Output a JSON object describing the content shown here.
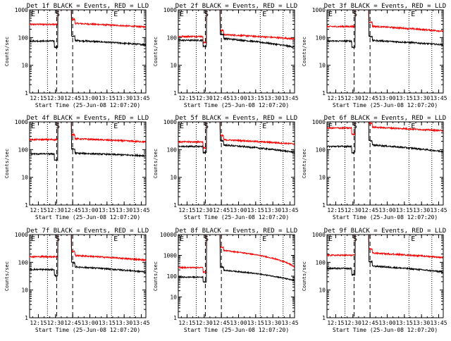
{
  "colors": {
    "events": "#000000",
    "lld": "#ff0000",
    "frame": "#000000"
  },
  "chart_data": [
    {
      "type": "line",
      "title": "Det 1f BLACK = Events, RED = LLD",
      "xlabel": "Start Time (25-Jun-08 12:07:20)",
      "ylabel": "Counts/sec",
      "ylog": true,
      "ylim": [
        1,
        1000
      ],
      "yticks": [
        "1",
        "10",
        "100",
        "1000"
      ],
      "xticks": [
        "12:15",
        "12:30",
        "12:45",
        "13:00",
        "13:15",
        "13:30",
        "13:45"
      ],
      "xmarkers": [
        "S",
        "E"
      ],
      "red": {
        "pre": 300,
        "post": 330,
        "post_end": 240
      },
      "black": {
        "pre": 75,
        "post": 80,
        "post_end": 55
      },
      "dash": "black_only"
    },
    {
      "type": "line",
      "title": "Det 2f BLACK = Events, RED = LLD",
      "xlabel": "Start Time (25-Jun-08 12:07:20)",
      "ylabel": "Counts/sec",
      "ylog": true,
      "ylim": [
        1,
        1000
      ],
      "yticks": [
        "1",
        "10",
        "100",
        "1000"
      ],
      "xticks": [
        "12:15",
        "12:30",
        "12:45",
        "13:00",
        "13:15",
        "13:30",
        "13:45"
      ],
      "xmarkers": [
        "S",
        "E"
      ],
      "red": {
        "pre": 110,
        "post": 130,
        "post_end": 90
      },
      "black": {
        "pre": 80,
        "post": 95,
        "post_end": 45
      },
      "dash": "both"
    },
    {
      "type": "line",
      "title": "Det 3f BLACK = Events, RED = LLD",
      "xlabel": "Start Time (25-Jun-08 12:07:20)",
      "ylabel": "Counts/sec",
      "ylog": true,
      "ylim": [
        1,
        1000
      ],
      "yticks": [
        "1",
        "10",
        "100",
        "1000"
      ],
      "xticks": [
        "12:15",
        "12:30",
        "12:45",
        "13:00",
        "13:15",
        "13:30",
        "13:45"
      ],
      "xmarkers": [
        "S",
        "E"
      ],
      "red": {
        "pre": 250,
        "post": 260,
        "post_end": 170
      },
      "black": {
        "pre": 75,
        "post": 80,
        "post_end": 55
      },
      "dash": "black_only"
    },
    {
      "type": "line",
      "title": "Det 4f BLACK = Events, RED = LLD",
      "xlabel": "Start Time (25-Jun-08 12:07:20)",
      "ylabel": "Counts/sec",
      "ylog": true,
      "ylim": [
        1,
        1000
      ],
      "yticks": [
        "1",
        "10",
        "100",
        "1000"
      ],
      "xticks": [
        "12:15",
        "12:30",
        "12:45",
        "13:00",
        "13:15",
        "13:30",
        "13:45"
      ],
      "xmarkers": [
        "S",
        "E"
      ],
      "red": {
        "pre": 230,
        "post": 250,
        "post_end": 190
      },
      "black": {
        "pre": 70,
        "post": 75,
        "post_end": 60
      },
      "dash": "black_only"
    },
    {
      "type": "line",
      "title": "Det 5f BLACK = Events, RED = LLD",
      "xlabel": "Start Time (25-Jun-08 12:07:20)",
      "ylabel": "Counts/sec",
      "ylog": true,
      "ylim": [
        1,
        1000
      ],
      "yticks": [
        "1",
        "10",
        "100",
        "1000"
      ],
      "xticks": [
        "12:15",
        "12:30",
        "12:45",
        "13:00",
        "13:15",
        "13:30",
        "13:45"
      ],
      "xmarkers": [
        "S",
        "E"
      ],
      "red": {
        "pre": 190,
        "post": 230,
        "post_end": 160
      },
      "black": {
        "pre": 130,
        "post": 150,
        "post_end": 80
      },
      "dash": "both"
    },
    {
      "type": "line",
      "title": "Det 6f BLACK = Events, RED = LLD",
      "xlabel": "Start Time (25-Jun-08 12:07:20)",
      "ylabel": "Counts/sec",
      "ylog": true,
      "ylim": [
        1,
        1000
      ],
      "yticks": [
        "1",
        "10",
        "100",
        "1000"
      ],
      "xticks": [
        "12:15",
        "12:30",
        "12:45",
        "13:00",
        "13:15",
        "13:30",
        "13:45"
      ],
      "xmarkers": [
        "S",
        "E"
      ],
      "red": {
        "pre": 600,
        "post": 650,
        "post_end": 480
      },
      "black": {
        "pre": 130,
        "post": 150,
        "post_end": 85
      },
      "dash": "both"
    },
    {
      "type": "line",
      "title": "Det 7f BLACK = Events, RED = LLD",
      "xlabel": "Start Time (25-Jun-08 12:07:20)",
      "ylabel": "Counts/sec",
      "ylog": true,
      "ylim": [
        1,
        1000
      ],
      "yticks": [
        "1",
        "10",
        "100",
        "1000"
      ],
      "xticks": [
        "12:15",
        "12:30",
        "12:45",
        "13:00",
        "13:15",
        "13:30",
        "13:45"
      ],
      "xmarkers": [
        "S",
        "E"
      ],
      "red": {
        "pre": 160,
        "post": 180,
        "post_end": 120
      },
      "black": {
        "pre": 55,
        "post": 70,
        "post_end": 45
      },
      "dash": "black_only"
    },
    {
      "type": "line",
      "title": "Det 8f BLACK = Events, RED = LLD",
      "xlabel": "Start Time (25-Jun-08 12:07:20)",
      "ylabel": "Counts/sec",
      "ylog": true,
      "ylim": [
        1,
        10000
      ],
      "yticks": [
        "1",
        "10",
        "100",
        "1000",
        "10000"
      ],
      "xticks": [
        "12:15",
        "12:30",
        "12:45",
        "13:00",
        "13:15",
        "13:30",
        "13:45"
      ],
      "xmarkers": [
        "S",
        "E"
      ],
      "red": {
        "pre": 260,
        "post": 1800,
        "post_end": 280
      },
      "black": {
        "pre": 90,
        "post": 200,
        "post_end": 60
      },
      "dash": "both"
    },
    {
      "type": "line",
      "title": "Det 9f BLACK = Events, RED = LLD",
      "xlabel": "Start Time (25-Jun-08 12:07:20)",
      "ylabel": "Counts/sec",
      "ylog": true,
      "ylim": [
        1,
        1000
      ],
      "yticks": [
        "1",
        "10",
        "100",
        "1000"
      ],
      "xticks": [
        "12:15",
        "12:30",
        "12:45",
        "13:00",
        "13:15",
        "13:30",
        "13:45"
      ],
      "xmarkers": [
        "S",
        "E"
      ],
      "red": {
        "pre": 180,
        "post": 220,
        "post_end": 150
      },
      "black": {
        "pre": 60,
        "post": 75,
        "post_end": 45
      },
      "dash": "black_only"
    }
  ]
}
